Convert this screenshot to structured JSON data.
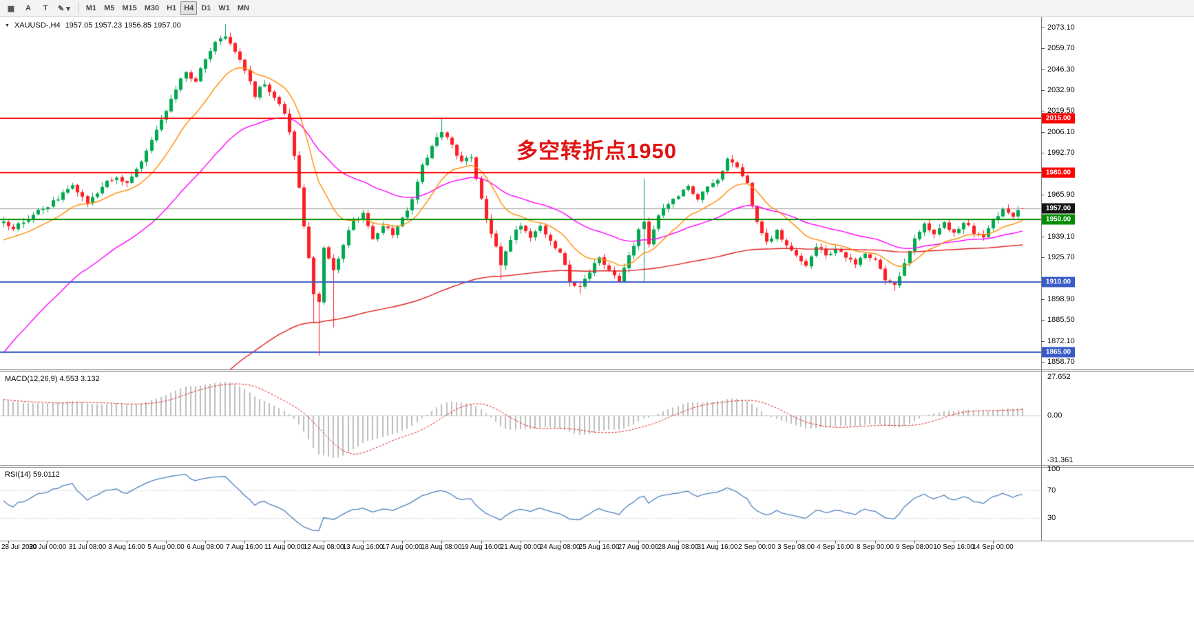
{
  "toolbar": {
    "tools": [
      {
        "id": "panels",
        "glyph": "▦"
      },
      {
        "id": "cursor",
        "glyph": "A"
      },
      {
        "id": "text",
        "glyph": "T"
      },
      {
        "id": "draw",
        "glyph": "✎ ▾"
      }
    ],
    "timeframes": [
      "M1",
      "M5",
      "M15",
      "M30",
      "H1",
      "H4",
      "D1",
      "W1",
      "MN"
    ],
    "selected_timeframe": "H4"
  },
  "chart_header": {
    "symbol_period": "XAUUSD-,H4",
    "ohlc": "1957.05 1957.23 1956.85 1957.00"
  },
  "annotation": {
    "text": "多空转折点1950",
    "color": "#e01212"
  },
  "price_axis": {
    "ticks": [
      "2073.10",
      "2059.70",
      "2046.30",
      "2032.90",
      "2019.50",
      "2006.10",
      "1992.70",
      "1965.90",
      "1939.10",
      "1925.70",
      "1898.90",
      "1885.50",
      "1872.10",
      "1858.70"
    ],
    "badges": [
      {
        "label": "2015.00",
        "value": 2015.0,
        "bg": "#ff0000"
      },
      {
        "label": "1980.00",
        "value": 1980.0,
        "bg": "#ff0000"
      },
      {
        "label": "1957.00",
        "value": 1957.0,
        "bg": "#141414"
      },
      {
        "label": "1950.00",
        "value": 1950.0,
        "bg": "#008c00"
      },
      {
        "label": "1910.00",
        "value": 1910.0,
        "bg": "#3a5bc7"
      },
      {
        "label": "1865.00",
        "value": 1865.0,
        "bg": "#3a5bc7"
      }
    ]
  },
  "panels": {
    "macd_label": "MACD(12,26,9) 4.553 3.132",
    "macd_ticks": [
      "27.652",
      "0.00",
      "-31.361"
    ],
    "rsi_label": "RSI(14) 59.0112",
    "rsi_ticks": [
      "100",
      "70",
      "30"
    ]
  },
  "chart_data": {
    "type": "candlestick",
    "symbol": "XAUUSD-",
    "timeframe": "H4",
    "bars_total": 208,
    "y_range": [
      1853.8,
      2079.7
    ],
    "up_color": "#00a850",
    "down_color": "#fe1e24",
    "bid_line": {
      "value": 1957.0,
      "color": "#9a9a9a"
    },
    "price_keyframes": [
      [
        0,
        1950
      ],
      [
        2,
        1944
      ],
      [
        5,
        1950
      ],
      [
        7,
        1955
      ],
      [
        9,
        1958
      ],
      [
        11,
        1964
      ],
      [
        14,
        1972
      ],
      [
        17,
        1960
      ],
      [
        20,
        1972
      ],
      [
        23,
        1976
      ],
      [
        25,
        1973
      ],
      [
        27,
        1981
      ],
      [
        30,
        2001
      ],
      [
        33,
        2020
      ],
      [
        35,
        2034
      ],
      [
        37,
        2044
      ],
      [
        39,
        2038
      ],
      [
        41,
        2053
      ],
      [
        43,
        2063
      ],
      [
        45,
        2068
      ],
      [
        47,
        2058
      ],
      [
        49,
        2046
      ],
      [
        51,
        2030
      ],
      [
        53,
        2038
      ],
      [
        55,
        2028
      ],
      [
        57,
        2018
      ],
      [
        59,
        1992
      ],
      [
        61,
        1946
      ],
      [
        63,
        1902
      ],
      [
        64,
        1898
      ],
      [
        65,
        1932
      ],
      [
        67,
        1916
      ],
      [
        69,
        1934
      ],
      [
        71,
        1950
      ],
      [
        73,
        1953
      ],
      [
        75,
        1936
      ],
      [
        77,
        1946
      ],
      [
        79,
        1941
      ],
      [
        81,
        1950
      ],
      [
        83,
        1962
      ],
      [
        85,
        1984
      ],
      [
        87,
        1998
      ],
      [
        89,
        2005
      ],
      [
        91,
        1998
      ],
      [
        93,
        1986
      ],
      [
        95,
        1990
      ],
      [
        97,
        1963
      ],
      [
        99,
        1941
      ],
      [
        101,
        1922
      ],
      [
        103,
        1937
      ],
      [
        105,
        1947
      ],
      [
        107,
        1938
      ],
      [
        109,
        1946
      ],
      [
        111,
        1937
      ],
      [
        113,
        1928
      ],
      [
        115,
        1911
      ],
      [
        117,
        1906
      ],
      [
        119,
        1917
      ],
      [
        121,
        1927
      ],
      [
        123,
        1917
      ],
      [
        125,
        1910
      ],
      [
        127,
        1926
      ],
      [
        129,
        1943
      ],
      [
        130,
        1948
      ],
      [
        131,
        1934
      ],
      [
        133,
        1952
      ],
      [
        135,
        1960
      ],
      [
        137,
        1965
      ],
      [
        139,
        1971
      ],
      [
        141,
        1964
      ],
      [
        143,
        1970
      ],
      [
        145,
        1975
      ],
      [
        147,
        1989
      ],
      [
        149,
        1984
      ],
      [
        151,
        1972
      ],
      [
        153,
        1948
      ],
      [
        155,
        1935
      ],
      [
        157,
        1943
      ],
      [
        159,
        1933
      ],
      [
        161,
        1928
      ],
      [
        163,
        1921
      ],
      [
        165,
        1933
      ],
      [
        167,
        1927
      ],
      [
        169,
        1931
      ],
      [
        171,
        1926
      ],
      [
        173,
        1921
      ],
      [
        175,
        1929
      ],
      [
        177,
        1924
      ],
      [
        179,
        1912
      ],
      [
        181,
        1907
      ],
      [
        183,
        1922
      ],
      [
        185,
        1939
      ],
      [
        187,
        1947
      ],
      [
        189,
        1940
      ],
      [
        191,
        1948
      ],
      [
        193,
        1941
      ],
      [
        195,
        1948
      ],
      [
        197,
        1942
      ],
      [
        199,
        1938
      ],
      [
        201,
        1950
      ],
      [
        203,
        1957
      ],
      [
        205,
        1953
      ],
      [
        207,
        1957
      ]
    ],
    "wick_overrides": [
      {
        "bar": 45,
        "high": 2075.2
      },
      {
        "bar": 63,
        "low": 1884.0
      },
      {
        "bar": 64,
        "low": 1862.6
      },
      {
        "bar": 67,
        "low": 1880.6
      },
      {
        "bar": 89,
        "high": 2015.3
      },
      {
        "bar": 101,
        "low": 1911.3
      },
      {
        "bar": 117,
        "low": 1902.4
      },
      {
        "bar": 130,
        "high": 1976.1,
        "low": 1909.4
      },
      {
        "bar": 181,
        "low": 1904.2
      },
      {
        "bar": 207,
        "open": 1957.05,
        "high": 1957.23,
        "low": 1956.85,
        "close": 1957.0
      }
    ],
    "levels": [
      {
        "value": 2015.0,
        "color": "#ff0000",
        "width": 2
      },
      {
        "value": 1980.0,
        "color": "#ff0000",
        "width": 2
      },
      {
        "value": 1950.0,
        "color": "#008c00",
        "width": 2
      },
      {
        "value": 1910.0,
        "color": "#3a5bc7",
        "width": 2
      },
      {
        "value": 1865.0,
        "color": "#3a5bc7",
        "width": 2
      }
    ],
    "moving_averages": [
      {
        "name": "ema-fast-orange",
        "color": "#ff8c00",
        "alpha": 0.13,
        "seed": 1935
      },
      {
        "name": "ema-mid-magenta",
        "color": "#ff00ff",
        "alpha": 0.048,
        "seed": 1860
      },
      {
        "name": "ema-slow-red",
        "color": "#e02020",
        "alpha": 0.013,
        "seed": 1730
      }
    ],
    "x_first_label_bar": 1,
    "x_label_step": 8,
    "x_labels": [
      "28 Jul 2020",
      "30 Jul 00:00",
      "31 Jul 08:00",
      "3 Aug 16:00",
      "5 Aug 00:00",
      "6 Aug 08:00",
      "7 Aug 16:00",
      "11 Aug 00:00",
      "12 Aug 08:00",
      "13 Aug 16:00",
      "17 Aug 00:00",
      "18 Aug 08:00",
      "19 Aug 16:00",
      "21 Aug 00:00",
      "24 Aug 08:00",
      "25 Aug 16:00",
      "27 Aug 00:00",
      "28 Aug 08:00",
      "31 Aug 16:00",
      "2 Sep 00:00",
      "3 Sep 08:00",
      "4 Sep 16:00",
      "8 Sep 00:00",
      "9 Sep 08:00",
      "10 Sep 16:00",
      "14 Sep 00:00"
    ],
    "macd": {
      "fast": 12,
      "slow": 26,
      "signal_period": 9,
      "hist_color": "#bdbdbd",
      "signal_color": "#dd2222",
      "range": [
        -35,
        31
      ]
    },
    "rsi": {
      "period": 14,
      "color": "#4f81bd",
      "range": [
        0,
        100
      ],
      "levels": [
        70,
        30
      ]
    }
  }
}
